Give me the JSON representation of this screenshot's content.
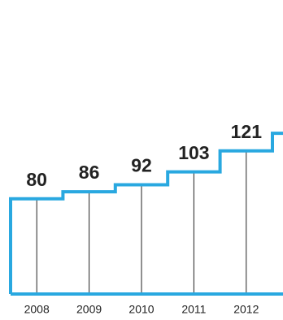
{
  "chart_data": {
    "type": "step",
    "categories": [
      "2008",
      "2009",
      "2010",
      "2011",
      "2012",
      null
    ],
    "values": [
      80,
      86,
      92,
      103,
      121,
      136
    ],
    "color": "#29a8e0",
    "ylim": [
      0,
      250
    ]
  }
}
